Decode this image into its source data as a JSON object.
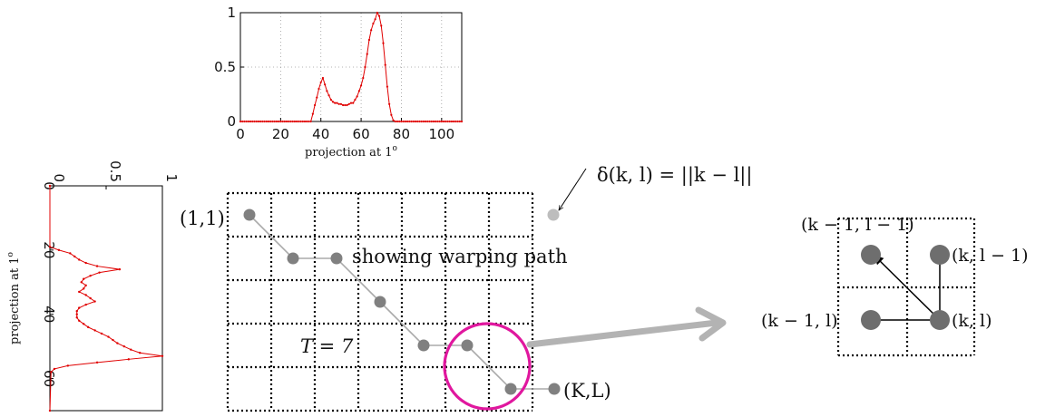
{
  "top_plot": {
    "xlabel": "projection at 1",
    "xlabel_sup": "o",
    "x_ticks": [
      "0",
      "20",
      "40",
      "60",
      "80",
      "100"
    ],
    "y_ticks": [
      "0",
      "0.5",
      "1"
    ],
    "color": "#e00000"
  },
  "left_plot": {
    "xlabel": "projection at 1",
    "xlabel_sup": "o",
    "value_ticks": [
      "0",
      "0.5",
      "1"
    ],
    "pos_ticks": [
      "0",
      "20",
      "40",
      "60"
    ],
    "color": "#e00000"
  },
  "chart_data": [
    {
      "type": "line",
      "title": "",
      "xlabel": "projection at 1o",
      "ylabel": "",
      "xlim": [
        0,
        110
      ],
      "ylim": [
        0,
        1
      ],
      "grid": true,
      "series": [
        {
          "x": [
            0,
            35,
            36,
            37,
            38,
            39,
            40,
            41,
            42,
            43,
            44,
            45,
            46,
            47,
            48,
            49,
            50,
            51,
            52,
            53,
            54,
            55,
            56,
            57,
            58,
            59,
            60,
            61,
            62,
            63,
            64,
            65,
            66,
            67,
            68,
            69,
            70,
            71,
            72,
            73,
            74,
            75,
            76,
            77,
            110
          ],
          "y": [
            0,
            0,
            0.07,
            0.15,
            0.22,
            0.3,
            0.36,
            0.4,
            0.34,
            0.28,
            0.24,
            0.2,
            0.18,
            0.17,
            0.17,
            0.16,
            0.16,
            0.15,
            0.15,
            0.15,
            0.16,
            0.17,
            0.17,
            0.2,
            0.23,
            0.28,
            0.33,
            0.4,
            0.5,
            0.62,
            0.75,
            0.84,
            0.9,
            0.94,
            1.0,
            0.97,
            0.88,
            0.72,
            0.52,
            0.32,
            0.16,
            0.06,
            0.01,
            0,
            0
          ]
        }
      ]
    },
    {
      "type": "line",
      "title": "",
      "xlabel": "projection at 1o",
      "ylabel": "",
      "xlim": [
        0,
        70
      ],
      "ylim": [
        0,
        1
      ],
      "grid": false,
      "series": [
        {
          "x": [
            0,
            19,
            20,
            21,
            22,
            23,
            24,
            25,
            26,
            27,
            28,
            29,
            30,
            31,
            32,
            33,
            34,
            35,
            36,
            37,
            38,
            39,
            40,
            41,
            42,
            43,
            44,
            45,
            46,
            47,
            48,
            49,
            50,
            51,
            52,
            53,
            54,
            55,
            56,
            57,
            58,
            70
          ],
          "y": [
            0,
            0,
            0.08,
            0.18,
            0.22,
            0.26,
            0.32,
            0.42,
            0.62,
            0.44,
            0.36,
            0.3,
            0.28,
            0.32,
            0.3,
            0.26,
            0.32,
            0.36,
            0.4,
            0.32,
            0.26,
            0.24,
            0.24,
            0.24,
            0.26,
            0.3,
            0.34,
            0.4,
            0.46,
            0.52,
            0.56,
            0.6,
            0.66,
            0.72,
            0.8,
            1.0,
            0.7,
            0.42,
            0.16,
            0.04,
            0.01,
            0
          ]
        }
      ]
    }
  ],
  "grid": {
    "rows": 5,
    "cols": 7,
    "path_points": [
      [
        0,
        0
      ],
      [
        1,
        1
      ],
      [
        2,
        1
      ],
      [
        3,
        2
      ],
      [
        4,
        3
      ],
      [
        5,
        3
      ],
      [
        6,
        4
      ]
    ],
    "path_end_label": "(K,L)",
    "start_label": "(1,1)",
    "path_caption": "showing warping path",
    "t_label": "T = 7",
    "delta_label": "δ(k, l) = ||k − l||",
    "path_color": "#808080",
    "light_dot_color": "#bdbdbd",
    "circle_color": "#e0179e",
    "arrow_color": "#b3b3b3"
  },
  "inset": {
    "label_top": "(k − 1, l − 1)",
    "label_right_top": "(k, l − 1)",
    "label_right_bottom": "(k, l)",
    "label_left": "(k − 1, l)"
  }
}
